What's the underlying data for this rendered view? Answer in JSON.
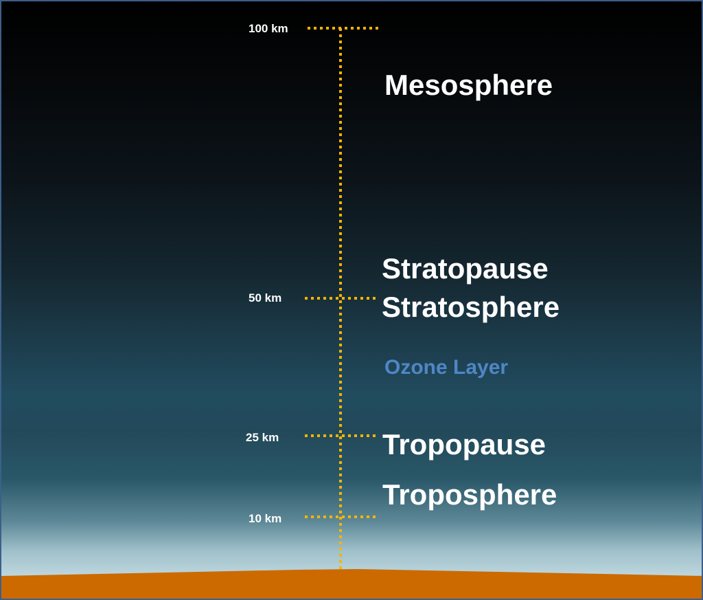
{
  "colors": {
    "marker": "#f5b400",
    "ground": "#cc6a00",
    "ozone_text": "#4f86c6",
    "label_text": "#ffffff"
  },
  "altitude_markers": {
    "km100": "100 km",
    "km50": "50 km",
    "km25": "25 km",
    "km10": "10 km"
  },
  "layers": {
    "mesosphere": "Mesosphere",
    "stratopause": "Stratopause",
    "stratosphere": "Stratosphere",
    "ozone": "Ozone Layer",
    "tropopause": "Tropopause",
    "troposphere": "Troposphere"
  }
}
